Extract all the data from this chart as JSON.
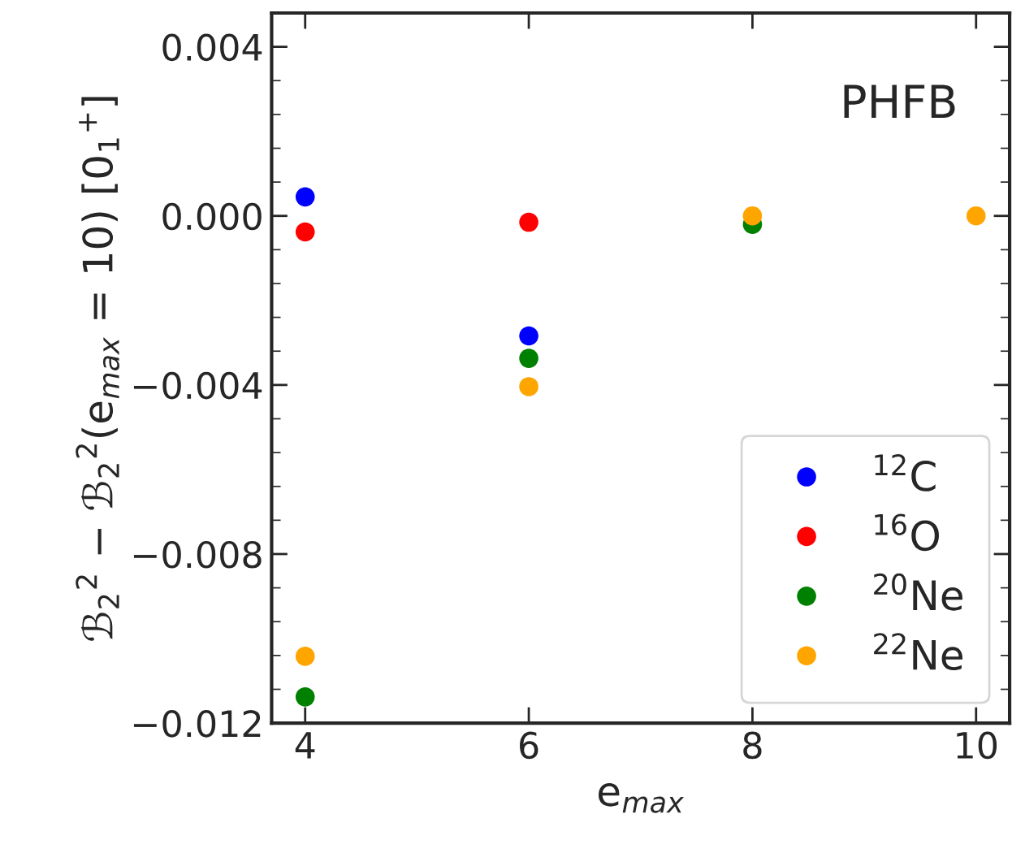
{
  "chart_data": {
    "type": "scatter",
    "ylabel": "ℬ$_{2}$$^{2}$ − ℬ$_{2}$$^{2}$(e$_{max}$ = 10) [0$_{1}$$^{+}$]",
    "xlabel": "e$_{max}$",
    "annotations": [
      "PHFB"
    ],
    "x": [
      4,
      6,
      8,
      10
    ],
    "series": [
      {
        "name": "$^{12}$C",
        "color": "#0000ff",
        "values": [
          0.00045,
          -0.00284,
          null,
          null
        ]
      },
      {
        "name": "$^{16}$O",
        "color": "#ff0000",
        "values": [
          -0.00038,
          -0.00015,
          null,
          null
        ]
      },
      {
        "name": "$^{20}$Ne",
        "color": "#008000",
        "values": [
          -0.01138,
          -0.00337,
          -0.0002,
          null
        ]
      },
      {
        "name": "$^{22}$Ne",
        "color": "#ffa500",
        "values": [
          -0.01042,
          -0.00404,
          0.0,
          0.0
        ]
      }
    ],
    "xlim": [
      3.7,
      10.3
    ],
    "xticks": [
      4,
      6,
      8,
      10
    ],
    "ylim": [
      -0.012,
      0.0048
    ],
    "yticks": [
      {
        "value": -0.012,
        "label": "−0.012"
      },
      {
        "value": -0.008,
        "label": "−0.008"
      },
      {
        "value": -0.004,
        "label": "−0.004"
      },
      {
        "value": 0.0,
        "label": "0.000"
      },
      {
        "value": 0.004,
        "label": "0.004"
      }
    ],
    "marker": "circle",
    "grid": false,
    "legend": "bottom right"
  }
}
